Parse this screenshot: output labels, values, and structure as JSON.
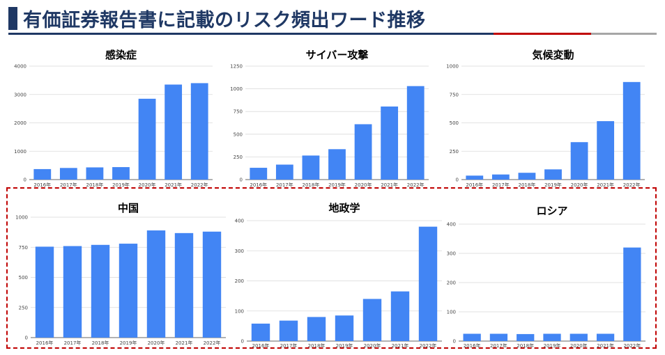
{
  "page": {
    "title": "有価証券報告書に記載のリスク頻出ワード推移"
  },
  "colors": {
    "bar": "#4285f4",
    "navy": "#1f3864",
    "red": "#c00000",
    "gray": "#a6a6a6"
  },
  "chart_data": [
    {
      "id": "kansensho",
      "type": "bar",
      "title": "感染症",
      "categories": [
        "2016年",
        "2017年",
        "2018年",
        "2019年",
        "2020年",
        "2021年",
        "2022年"
      ],
      "values": [
        370,
        410,
        430,
        440,
        2850,
        3350,
        3400
      ],
      "yticks": [
        0,
        1000,
        2000,
        3000,
        4000
      ],
      "ylim": [
        0,
        4000
      ]
    },
    {
      "id": "cyber",
      "type": "bar",
      "title": "サイバー攻撃",
      "categories": [
        "2016年",
        "2017年",
        "2018年",
        "2019年",
        "2020年",
        "2021年",
        "2022年"
      ],
      "values": [
        130,
        165,
        265,
        335,
        610,
        805,
        1030
      ],
      "yticks": [
        0,
        250,
        500,
        750,
        1000,
        1250
      ],
      "ylim": [
        0,
        1250
      ]
    },
    {
      "id": "kiko",
      "type": "bar",
      "title": "気候変動",
      "categories": [
        "2016年",
        "2017年",
        "2018年",
        "2019年",
        "2020年",
        "2021年",
        "2022年"
      ],
      "values": [
        35,
        45,
        60,
        90,
        330,
        515,
        860
      ],
      "yticks": [
        0,
        250,
        500,
        750,
        1000
      ],
      "ylim": [
        0,
        1000
      ]
    },
    {
      "id": "chugoku",
      "type": "bar",
      "title": "中国",
      "categories": [
        "2016年",
        "2017年",
        "2018年",
        "2019年",
        "2020年",
        "2021年",
        "2022年"
      ],
      "values": [
        755,
        760,
        770,
        780,
        890,
        868,
        880
      ],
      "yticks": [
        0,
        250,
        500,
        750,
        1000
      ],
      "ylim": [
        0,
        1000
      ]
    },
    {
      "id": "chiseigaku",
      "type": "bar",
      "title": "地政学",
      "categories": [
        "2016年",
        "2017年",
        "2018年",
        "2019年",
        "2020年",
        "2021年",
        "2022年"
      ],
      "values": [
        58,
        68,
        80,
        85,
        140,
        165,
        380
      ],
      "yticks": [
        0,
        100,
        200,
        300,
        400
      ],
      "ylim": [
        0,
        400
      ]
    },
    {
      "id": "russia",
      "type": "bar",
      "title": "ロシア",
      "categories": [
        "2016年",
        "2017年",
        "2018年",
        "2019年",
        "2020年",
        "2021年",
        "2022年"
      ],
      "values": [
        25,
        25,
        24,
        25,
        25,
        25,
        320
      ],
      "yticks": [
        0,
        100,
        200,
        300,
        400
      ],
      "ylim": [
        0,
        400
      ]
    }
  ]
}
